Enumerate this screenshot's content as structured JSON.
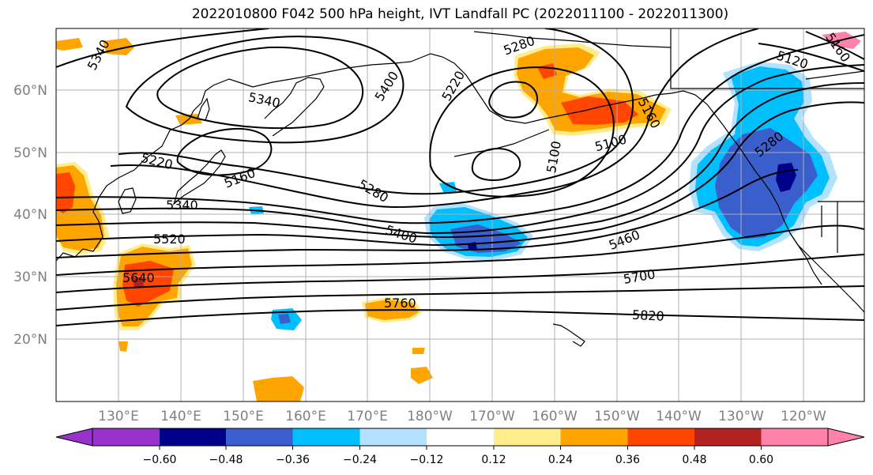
{
  "title": "2022010800 F042 500 hPa height, IVT Landfall PC (2022011100 - 2022011300)",
  "map": {
    "lat_labels": [
      "60°N",
      "50°N",
      "40°N",
      "30°N",
      "20°N"
    ],
    "lon_labels": [
      "130°E",
      "140°E",
      "150°E",
      "160°E",
      "170°E",
      "180°W",
      "170°W",
      "160°W",
      "150°W",
      "140°W",
      "130°W",
      "120°W"
    ],
    "contour_labels": [
      "5340",
      "5340",
      "5220",
      "5160",
      "5340",
      "5520",
      "5640",
      "5400",
      "5220",
      "5280",
      "5100",
      "5160",
      "5100",
      "5280",
      "5400",
      "5460",
      "5700",
      "5760",
      "5820",
      "5120",
      "5160",
      "5280"
    ],
    "colors": {
      "ocean": "#ffffff",
      "grid": "#b0b0b0",
      "contour": "#000000",
      "coast": "#000000"
    }
  },
  "colorbar": {
    "ticks": [
      "−0.60",
      "−0.48",
      "−0.36",
      "−0.24",
      "−0.12",
      "0.12",
      "0.24",
      "0.36",
      "0.48",
      "0.60"
    ],
    "colors": [
      "#9932cc",
      "#00008b",
      "#3a5fcd",
      "#00bfff",
      "#b2e2ff",
      "#ffffff",
      "#ffec8b",
      "#ffa500",
      "#ff4500",
      "#b22222",
      "#ff82ab"
    ]
  }
}
